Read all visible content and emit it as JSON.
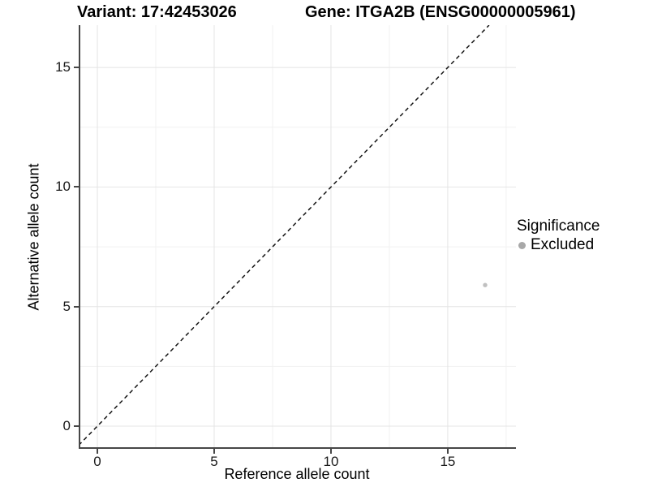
{
  "header": {
    "variant_title": "Variant: 17:42453026",
    "gene_title": "Gene: ITGA2B (ENSG00000005961)"
  },
  "axes": {
    "x": {
      "label": "Reference allele count",
      "tick_labels": [
        "0",
        "5",
        "10",
        "15"
      ]
    },
    "y": {
      "label": "Alternative allele count",
      "tick_labels": [
        "0",
        "5",
        "10",
        "15"
      ]
    }
  },
  "legend": {
    "title": "Significance",
    "items": [
      {
        "label": "Excluded",
        "color": "#a8a8a8",
        "marker": "circle"
      }
    ]
  },
  "colors": {
    "background": "#ffffff",
    "axis_line": "#474747",
    "major_gridline": "#e4e4e4",
    "minor_gridline": "#f1f1f1",
    "identity_line": "#141414",
    "point": "#c0c0c0",
    "tick_text": "#1a1a1a"
  },
  "chart_data": {
    "type": "scatter",
    "title": "Variant: 17:42453026 | Gene: ITGA2B (ENSG00000005961)",
    "xlabel": "Reference allele count",
    "ylabel": "Alternative allele count",
    "xlim": [
      -0.8,
      17.92
    ],
    "ylim": [
      -0.95,
      16.77
    ],
    "x_ticks": [
      0,
      5,
      10,
      15
    ],
    "y_ticks": [
      0,
      5,
      10,
      15
    ],
    "grid": true,
    "legend_position": "right",
    "identity_line": {
      "equation": "y = x",
      "style": "dashed",
      "color": "#141414"
    },
    "series": [
      {
        "name": "Excluded",
        "color": "#c0c0c0",
        "marker": "circle",
        "points": [
          {
            "x": 16.6,
            "y": 5.9
          }
        ]
      }
    ]
  }
}
